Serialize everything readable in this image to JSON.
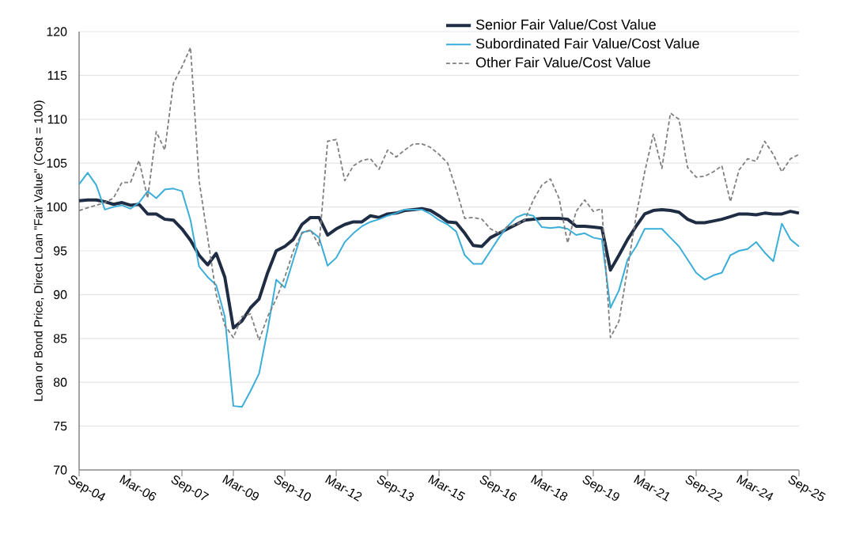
{
  "chart_data": {
    "type": "line",
    "ylabel": "Loan or Bond Price, Direct Loan \"Fair Value\" (Cost = 100)",
    "x": [
      "2004-09",
      "2004-12",
      "2005-03",
      "2005-06",
      "2005-09",
      "2005-12",
      "2006-03",
      "2006-06",
      "2006-09",
      "2006-12",
      "2007-03",
      "2007-06",
      "2007-09",
      "2007-12",
      "2008-03",
      "2008-06",
      "2008-09",
      "2008-12",
      "2009-03",
      "2009-06",
      "2009-09",
      "2009-12",
      "2010-03",
      "2010-06",
      "2010-09",
      "2010-12",
      "2011-03",
      "2011-06",
      "2011-09",
      "2011-12",
      "2012-03",
      "2012-06",
      "2012-09",
      "2012-12",
      "2013-03",
      "2013-06",
      "2013-09",
      "2013-12",
      "2014-03",
      "2014-06",
      "2014-09",
      "2014-12",
      "2015-03",
      "2015-06",
      "2015-09",
      "2015-12",
      "2016-03",
      "2016-06",
      "2016-09",
      "2016-12",
      "2017-03",
      "2017-06",
      "2017-09",
      "2017-12",
      "2018-03",
      "2018-06",
      "2018-09",
      "2018-12",
      "2019-03",
      "2019-06",
      "2019-09",
      "2019-12",
      "2020-03",
      "2020-06",
      "2020-09",
      "2020-12",
      "2021-03",
      "2021-06",
      "2021-09",
      "2021-12",
      "2022-03",
      "2022-06",
      "2022-09",
      "2022-12",
      "2023-03",
      "2023-06",
      "2023-09",
      "2023-12",
      "2024-03",
      "2024-06",
      "2024-09",
      "2024-12",
      "2025-03",
      "2025-06",
      "2025-09"
    ],
    "series": [
      {
        "name": "Senior Fair Value/Cost Value",
        "color": "#1f2d44",
        "line_style": "solid",
        "values": [
          100.7,
          100.8,
          100.8,
          100.6,
          100.3,
          100.5,
          100.2,
          100.3,
          99.2,
          99.2,
          98.6,
          98.5,
          97.5,
          96.2,
          94.5,
          93.4,
          94.7,
          92.0,
          86.2,
          87.0,
          88.5,
          89.5,
          92.5,
          95.0,
          95.5,
          96.3,
          98.0,
          98.8,
          98.8,
          96.8,
          97.5,
          98.0,
          98.3,
          98.3,
          99.0,
          98.8,
          99.2,
          99.3,
          99.6,
          99.7,
          99.8,
          99.6,
          99.0,
          98.3,
          98.2,
          97.0,
          95.6,
          95.5,
          96.5,
          97.0,
          97.5,
          98.0,
          98.5,
          98.6,
          98.7,
          98.7,
          98.7,
          98.6,
          97.8,
          97.8,
          97.7,
          97.6,
          92.8,
          94.5,
          96.3,
          97.8,
          99.2,
          99.6,
          99.7,
          99.6,
          99.4,
          98.6,
          98.2,
          98.2,
          98.4,
          98.6,
          98.9,
          99.2,
          99.2,
          99.1,
          99.3,
          99.2,
          99.2,
          99.5,
          99.3
        ]
      },
      {
        "name": "Subordinated Fair Value/Cost Value",
        "color": "#3aaed8",
        "line_style": "solid",
        "values": [
          102.6,
          103.9,
          102.5,
          99.7,
          100.0,
          100.2,
          99.8,
          100.5,
          101.8,
          101.0,
          102.0,
          102.1,
          101.8,
          98.5,
          93.2,
          92.0,
          91.1,
          87.5,
          77.3,
          77.2,
          79.0,
          81.0,
          86.0,
          91.7,
          90.8,
          94.0,
          97.1,
          97.3,
          96.5,
          93.3,
          94.2,
          96.0,
          97.0,
          97.8,
          98.3,
          98.6,
          99.0,
          99.3,
          99.7,
          99.7,
          99.7,
          99.2,
          98.5,
          98.0,
          97.2,
          94.5,
          93.5,
          93.5,
          95.0,
          96.5,
          97.8,
          98.8,
          99.2,
          99.0,
          97.7,
          97.6,
          97.7,
          97.5,
          96.8,
          97.0,
          96.5,
          96.3,
          88.5,
          90.5,
          94.0,
          95.5,
          97.5,
          97.5,
          97.5,
          96.5,
          95.5,
          94.0,
          92.5,
          91.7,
          92.2,
          92.5,
          94.5,
          95.0,
          95.2,
          96.0,
          94.8,
          93.8,
          98.1,
          96.3,
          95.5
        ]
      },
      {
        "name": "Other Fair Value/Cost Value",
        "color": "#7f7f7f",
        "line_style": "dashed",
        "values": [
          99.6,
          99.9,
          100.2,
          100.5,
          101.0,
          102.8,
          102.8,
          105.3,
          101.0,
          108.6,
          106.5,
          114.1,
          116.0,
          118.2,
          103.0,
          96.5,
          90.0,
          86.5,
          85.1,
          87.5,
          87.8,
          84.8,
          87.5,
          89.5,
          92.0,
          95.0,
          97.0,
          97.4,
          95.6,
          107.5,
          107.7,
          103.0,
          104.7,
          105.3,
          105.5,
          104.3,
          106.5,
          105.7,
          106.5,
          107.2,
          107.2,
          106.8,
          106.0,
          105.0,
          102.0,
          98.7,
          98.8,
          98.6,
          97.5,
          97.0,
          97.8,
          98.0,
          98.5,
          100.8,
          102.5,
          103.2,
          101.0,
          95.9,
          99.5,
          100.8,
          99.5,
          99.8,
          85.1,
          87.0,
          93.0,
          99.0,
          104.0,
          108.3,
          104.4,
          110.7,
          110.0,
          104.5,
          103.4,
          103.5,
          104.0,
          104.7,
          100.6,
          104.2,
          105.5,
          105.2,
          107.5,
          106.0,
          104.0,
          105.5,
          106.0
        ]
      }
    ],
    "xlim": [
      "2004-09",
      "2025-09"
    ],
    "xticks": [
      {
        "value": "2004-09",
        "label": "Sep-04"
      },
      {
        "value": "2006-03",
        "label": "Mar-06"
      },
      {
        "value": "2007-09",
        "label": "Sep-07"
      },
      {
        "value": "2009-03",
        "label": "Mar-09"
      },
      {
        "value": "2010-09",
        "label": "Sep-10"
      },
      {
        "value": "2012-03",
        "label": "Mar-12"
      },
      {
        "value": "2013-09",
        "label": "Sep-13"
      },
      {
        "value": "2015-03",
        "label": "Mar-15"
      },
      {
        "value": "2016-09",
        "label": "Sep-16"
      },
      {
        "value": "2018-03",
        "label": "Mar-18"
      },
      {
        "value": "2019-09",
        "label": "Sep-19"
      },
      {
        "value": "2021-03",
        "label": "Mar-21"
      },
      {
        "value": "2022-09",
        "label": "Sep-22"
      },
      {
        "value": "2024-03",
        "label": "Mar-24"
      },
      {
        "value": "2025-09",
        "label": "Sep-25"
      }
    ],
    "ylim": [
      70,
      120
    ],
    "yticks": [
      70,
      75,
      80,
      85,
      90,
      95,
      100,
      105,
      110,
      115,
      120
    ],
    "grid": "y",
    "legend": "top right",
    "marker": "none"
  }
}
